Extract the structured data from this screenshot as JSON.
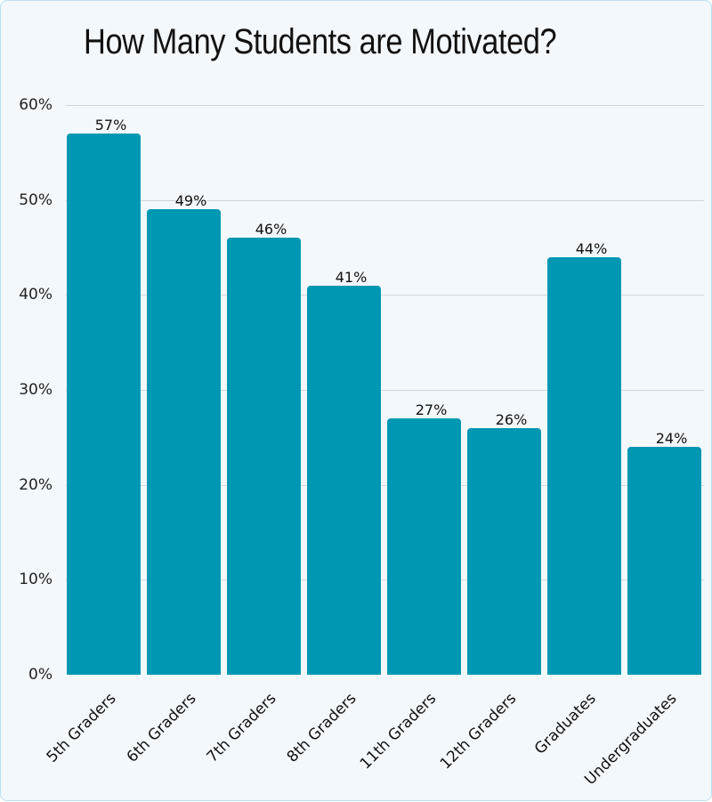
{
  "chart_data": {
    "type": "bar",
    "title": "How Many Students are Motivated?",
    "xlabel": "",
    "ylabel": "",
    "categories": [
      "5th Graders",
      "6th Graders",
      "7th Graders",
      "8th Graders",
      "11th Graders",
      "12th Graders",
      "Graduates",
      "Undergraduates"
    ],
    "values": [
      57,
      49,
      46,
      41,
      27,
      26,
      44,
      24
    ],
    "value_labels": [
      "57%",
      "49%",
      "46%",
      "41%",
      "27%",
      "26%",
      "44%",
      "24%"
    ],
    "ylim": [
      0,
      60
    ],
    "yticks": [
      "0%",
      "10%",
      "20%",
      "30%",
      "40%",
      "50%",
      "60%"
    ],
    "grid": true,
    "legend": null,
    "bar_color": "#0097b2"
  },
  "colors": {
    "background": "#f3f8fd",
    "border": "#b7e2ef",
    "bar": "#0097b2",
    "gridline": "#ccd6de"
  }
}
